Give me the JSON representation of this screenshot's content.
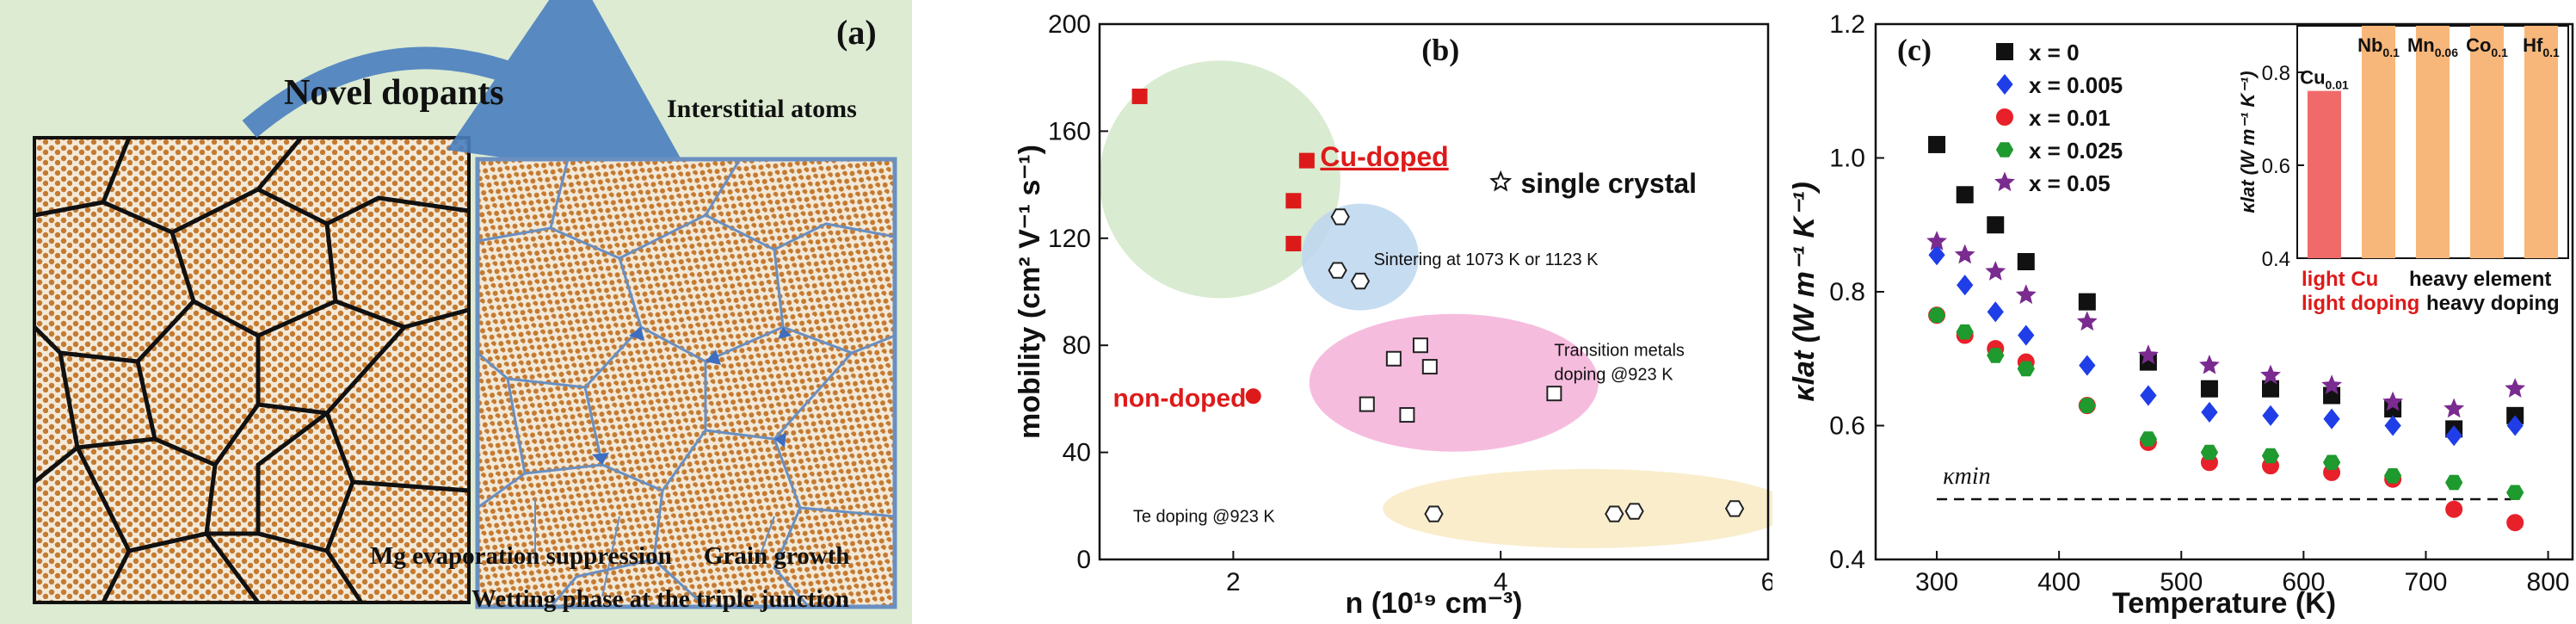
{
  "panel_a": {
    "label": "(a)",
    "title": "Novel dopants",
    "annotations": {
      "interstitial": "Interstitial atoms",
      "mg_evap": "Mg evaporation suppression",
      "grain_growth": "Grain growth",
      "wetting": "Wetting phase at the triple junction"
    }
  },
  "chart_data": [
    {
      "type": "scatter",
      "panel_label": "(b)",
      "xlabel": "n (10¹⁹ cm⁻³)",
      "ylabel": "mobility (cm² V⁻¹ s⁻¹)",
      "xlim": [
        1.0,
        6.0
      ],
      "ylim": [
        0,
        200
      ],
      "x_ticks": [
        "2",
        "4",
        "6"
      ],
      "y_ticks": [
        "0",
        "40",
        "80",
        "120",
        "160",
        "200"
      ],
      "groups": [
        {
          "name": "Cu-doped",
          "marker": "filled-square",
          "color": "#dd1a1a",
          "points": [
            [
              1.3,
              173
            ],
            [
              2.55,
              149
            ],
            [
              2.45,
              134
            ],
            [
              2.45,
              118
            ]
          ]
        },
        {
          "name": "non-doped",
          "marker": "filled-circle",
          "color": "#dd1a1a",
          "points": [
            [
              2.15,
              61
            ]
          ]
        },
        {
          "name": "Sintering at 1073 K or 1123 K",
          "marker": "open-hexagon",
          "color": "#222222",
          "points": [
            [
              2.8,
              128
            ],
            [
              2.78,
              108
            ],
            [
              2.95,
              104
            ]
          ]
        },
        {
          "name": "Transition metals doping @923 K",
          "marker": "open-square",
          "color": "#222222",
          "points": [
            [
              3.2,
              75
            ],
            [
              3.4,
              80
            ],
            [
              3.47,
              72
            ],
            [
              3.0,
              58
            ],
            [
              3.3,
              54
            ],
            [
              4.4,
              62
            ]
          ]
        },
        {
          "name": "Te doping @923 K",
          "marker": "open-hexagon",
          "color": "#222222",
          "points": [
            [
              3.5,
              17
            ],
            [
              4.85,
              17
            ],
            [
              5.0,
              18
            ],
            [
              5.75,
              19
            ]
          ]
        }
      ],
      "annotations": {
        "cu_doped": "Cu-doped",
        "single_crystal": "single crystal",
        "non_doped": "non-doped",
        "sintering": "Sintering at 1073 K or 1123 K",
        "tm_line1": "Transition metals",
        "tm_line2": "doping @923 K",
        "te": "Te doping @923 K"
      }
    },
    {
      "type": "scatter",
      "panel_label": "(c)",
      "xlabel": "Temperature (K)",
      "ylabel": "κlat (W m⁻¹ K⁻¹)",
      "xlim": [
        250,
        820
      ],
      "ylim": [
        0.4,
        1.2
      ],
      "x_ticks": [
        "300",
        "400",
        "500",
        "600",
        "700",
        "800"
      ],
      "y_ticks": [
        "0.4",
        "0.6",
        "0.8",
        "1.0",
        "1.2"
      ],
      "x": [
        300,
        323,
        348,
        373,
        423,
        473,
        523,
        573,
        623,
        673,
        723,
        773
      ],
      "series": [
        {
          "name": "x = 0",
          "marker": "square",
          "color": "#111111",
          "values": [
            1.02,
            0.945,
            0.9,
            0.845,
            0.785,
            0.695,
            0.655,
            0.655,
            0.645,
            0.625,
            0.595,
            0.615
          ]
        },
        {
          "name": "x = 0.005",
          "marker": "diamond",
          "color": "#1f3ee8",
          "values": [
            0.855,
            0.81,
            0.77,
            0.735,
            0.69,
            0.645,
            0.62,
            0.615,
            0.61,
            0.6,
            0.585,
            0.6
          ]
        },
        {
          "name": "x = 0.01",
          "marker": "circle",
          "color": "#e8202a",
          "values": [
            0.765,
            0.735,
            0.715,
            0.695,
            0.63,
            0.575,
            0.545,
            0.54,
            0.53,
            0.52,
            0.475,
            0.455
          ]
        },
        {
          "name": "x = 0.025",
          "marker": "hexagon",
          "color": "#1e9a2e",
          "values": [
            0.765,
            0.74,
            0.705,
            0.685,
            0.63,
            0.58,
            0.56,
            0.555,
            0.545,
            0.525,
            0.515,
            0.5
          ]
        },
        {
          "name": "x = 0.05",
          "marker": "star",
          "color": "#7a2b8f",
          "values": [
            0.875,
            0.855,
            0.83,
            0.795,
            0.755,
            0.705,
            0.69,
            0.675,
            0.66,
            0.635,
            0.625,
            0.655
          ]
        }
      ],
      "reference_line": {
        "label": "κmin",
        "value": 0.49
      },
      "inset": {
        "type": "bar",
        "ylabel": "κlat (W m⁻¹ K⁻¹)",
        "ylim": [
          0.4,
          0.9
        ],
        "y_ticks": [
          "0.4",
          "0.6",
          "0.8"
        ],
        "categories": [
          "Cu0.01",
          "Nb0.1",
          "Mn0.06",
          "Co0.1",
          "Hf0.1"
        ],
        "values": [
          0.76,
          0.92,
          0.92,
          0.92,
          0.92
        ],
        "colors": [
          "#f06a6a",
          "#f7b77a",
          "#f7b77a",
          "#f7b77a",
          "#f7b77a"
        ]
      },
      "below_inset": {
        "row1_red": "light Cu",
        "row1_black": "heavy element",
        "row2_red": "light doping",
        "row2_black": "heavy doping"
      }
    }
  ]
}
